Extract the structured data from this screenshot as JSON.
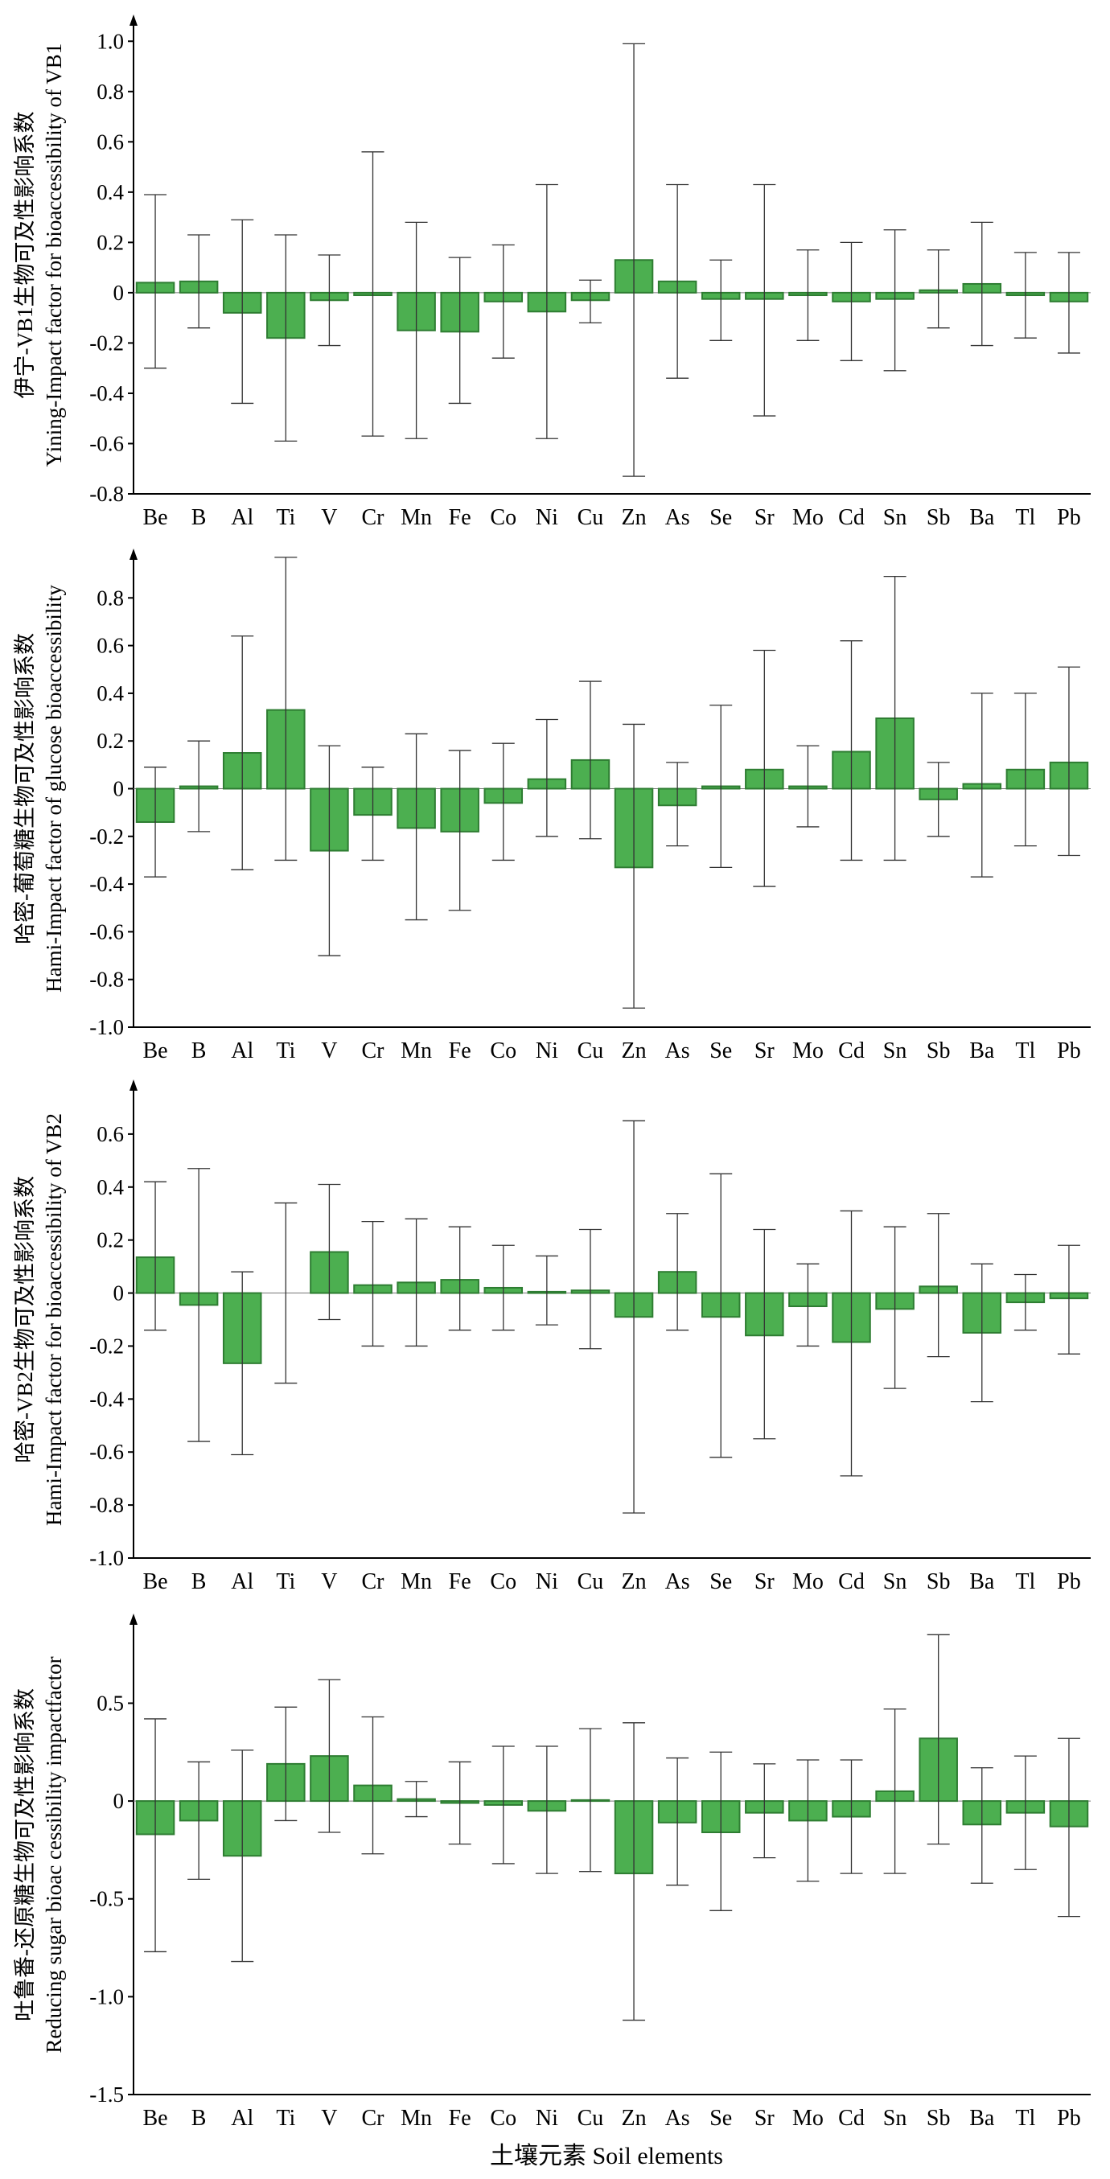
{
  "x_axis_label": "土壤元素 Soil elements",
  "chart_data": [
    {
      "type": "bar",
      "ylabel_line1": "伊宁-VB1生物可及性影响系数",
      "ylabel_line2": "Yining-Impact factor for bioaccessibility of VB1",
      "ylim": [
        -0.8,
        1.1
      ],
      "yticks": [
        1.0,
        0.8,
        0.6,
        0.4,
        0.2,
        0,
        -0.2,
        -0.4,
        -0.6,
        -0.8
      ],
      "ytick_labels": [
        "1.0",
        "0.8",
        "0.6",
        "0.4",
        "0.2",
        "0",
        "-0.2",
        "-0.4",
        "-0.6",
        "-0.8"
      ],
      "categories": [
        "Be",
        "B",
        "Al",
        "Ti",
        "V",
        "Cr",
        "Mn",
        "Fe",
        "Co",
        "Ni",
        "Cu",
        "Zn",
        "As",
        "Se",
        "Sr",
        "Mo",
        "Cd",
        "Sn",
        "Sb",
        "Ba",
        "Tl",
        "Pb"
      ],
      "values": [
        0.04,
        0.045,
        -0.08,
        -0.18,
        -0.03,
        -0.01,
        -0.15,
        -0.155,
        -0.035,
        -0.075,
        -0.03,
        0.13,
        0.045,
        -0.025,
        -0.025,
        -0.01,
        -0.035,
        -0.025,
        0.01,
        0.035,
        -0.01,
        -0.035
      ],
      "err_low": [
        -0.3,
        -0.14,
        -0.44,
        -0.59,
        -0.21,
        -0.57,
        -0.58,
        -0.44,
        -0.26,
        -0.58,
        -0.12,
        -0.73,
        -0.34,
        -0.19,
        -0.49,
        -0.19,
        -0.27,
        -0.31,
        -0.14,
        -0.21,
        -0.18,
        -0.24
      ],
      "err_high": [
        0.39,
        0.23,
        0.29,
        0.23,
        0.15,
        0.56,
        0.28,
        0.14,
        0.19,
        0.43,
        0.05,
        0.99,
        0.43,
        0.13,
        0.43,
        0.17,
        0.2,
        0.25,
        0.17,
        0.28,
        0.16,
        0.16
      ]
    },
    {
      "type": "bar",
      "ylabel_line1": "哈密-葡萄糖生物可及性影响系数",
      "ylabel_line2": "Hami-Impact factor of glucose bioaccessibility",
      "ylim": [
        -1.0,
        1.0
      ],
      "yticks": [
        0.8,
        0.6,
        0.4,
        0.2,
        0,
        -0.2,
        -0.4,
        -0.6,
        -0.8,
        -1.0
      ],
      "ytick_labels": [
        "0.8",
        "0.6",
        "0.4",
        "0.2",
        "0",
        "-0.2",
        "-0.4",
        "-0.6",
        "-0.8",
        "-1.0"
      ],
      "categories": [
        "Be",
        "B",
        "Al",
        "Ti",
        "V",
        "Cr",
        "Mn",
        "Fe",
        "Co",
        "Ni",
        "Cu",
        "Zn",
        "As",
        "Se",
        "Sr",
        "Mo",
        "Cd",
        "Sn",
        "Sb",
        "Ba",
        "Tl",
        "Pb"
      ],
      "values": [
        -0.14,
        0.01,
        0.15,
        0.33,
        -0.26,
        -0.11,
        -0.165,
        -0.18,
        -0.06,
        0.04,
        0.12,
        -0.33,
        -0.07,
        0.01,
        0.08,
        0.01,
        0.155,
        0.295,
        -0.045,
        0.02,
        0.08,
        0.11
      ],
      "err_low": [
        -0.37,
        -0.18,
        -0.34,
        -0.3,
        -0.7,
        -0.3,
        -0.55,
        -0.51,
        -0.3,
        -0.2,
        -0.21,
        -0.92,
        -0.24,
        -0.33,
        -0.41,
        -0.16,
        -0.3,
        -0.3,
        -0.2,
        -0.37,
        -0.24,
        -0.28
      ],
      "err_high": [
        0.09,
        0.2,
        0.64,
        0.97,
        0.18,
        0.09,
        0.23,
        0.16,
        0.19,
        0.29,
        0.45,
        0.27,
        0.11,
        0.35,
        0.58,
        0.18,
        0.62,
        0.89,
        0.11,
        0.4,
        0.4,
        0.51
      ]
    },
    {
      "type": "bar",
      "ylabel_line1": "哈密-VB2生物可及性影响系数",
      "ylabel_line2": "Hami-Impact factor for bioaccessibility of VB2",
      "ylim": [
        -1.0,
        0.8
      ],
      "yticks": [
        0.6,
        0.4,
        0.2,
        0,
        -0.2,
        -0.4,
        -0.6,
        -0.8,
        -1.0
      ],
      "ytick_labels": [
        "0.6",
        "0.4",
        "0.2",
        "0",
        "-0.2",
        "-0.4",
        "-0.6",
        "-0.8",
        "-1.0"
      ],
      "categories": [
        "Be",
        "B",
        "Al",
        "Ti",
        "V",
        "Cr",
        "Mn",
        "Fe",
        "Co",
        "Ni",
        "Cu",
        "Zn",
        "As",
        "Se",
        "Sr",
        "Mo",
        "Cd",
        "Sn",
        "Sb",
        "Ba",
        "Tl",
        "Pb"
      ],
      "values": [
        0.135,
        -0.045,
        -0.265,
        0,
        0.155,
        0.03,
        0.04,
        0.05,
        0.02,
        0.005,
        0.01,
        -0.09,
        0.08,
        -0.09,
        -0.16,
        -0.05,
        -0.185,
        -0.06,
        0.025,
        -0.15,
        -0.035,
        -0.02
      ],
      "err_low": [
        -0.14,
        -0.56,
        -0.61,
        -0.34,
        -0.1,
        -0.2,
        -0.2,
        -0.14,
        -0.14,
        -0.12,
        -0.21,
        -0.83,
        -0.14,
        -0.62,
        -0.55,
        -0.2,
        -0.69,
        -0.36,
        -0.24,
        -0.41,
        -0.14,
        -0.23
      ],
      "err_high": [
        0.42,
        0.47,
        0.08,
        0.34,
        0.41,
        0.27,
        0.28,
        0.25,
        0.18,
        0.14,
        0.24,
        0.65,
        0.3,
        0.45,
        0.24,
        0.11,
        0.31,
        0.25,
        0.3,
        0.11,
        0.07,
        0.18
      ]
    },
    {
      "type": "bar",
      "ylabel_line1": "吐鲁番-还原糖生物可及性影响系数",
      "ylabel_line2": "Reducing sugar bioac cessibility impactfactor",
      "ylim": [
        -1.5,
        0.95
      ],
      "yticks": [
        0.5,
        0,
        -0.5,
        -1.0,
        -1.5
      ],
      "ytick_labels": [
        "0.5",
        "0",
        "-0.5",
        "-1.0",
        "-1.5"
      ],
      "categories": [
        "Be",
        "B",
        "Al",
        "Ti",
        "V",
        "Cr",
        "Mn",
        "Fe",
        "Co",
        "Ni",
        "Cu",
        "Zn",
        "As",
        "Se",
        "Sr",
        "Mo",
        "Cd",
        "Sn",
        "Sb",
        "Ba",
        "Tl",
        "Pb"
      ],
      "values": [
        -0.17,
        -0.1,
        -0.28,
        0.19,
        0.23,
        0.08,
        0.01,
        -0.01,
        -0.02,
        -0.05,
        0.005,
        -0.37,
        -0.11,
        -0.16,
        -0.06,
        -0.1,
        -0.08,
        0.05,
        0.32,
        -0.12,
        -0.06,
        -0.13
      ],
      "err_low": [
        -0.77,
        -0.4,
        -0.82,
        -0.1,
        -0.16,
        -0.27,
        -0.08,
        -0.22,
        -0.32,
        -0.37,
        -0.36,
        -1.12,
        -0.43,
        -0.56,
        -0.29,
        -0.41,
        -0.37,
        -0.37,
        -0.22,
        -0.42,
        -0.35,
        -0.59
      ],
      "err_high": [
        0.42,
        0.2,
        0.26,
        0.48,
        0.62,
        0.43,
        0.1,
        0.2,
        0.28,
        0.28,
        0.37,
        0.4,
        0.22,
        0.25,
        0.19,
        0.21,
        0.21,
        0.47,
        0.85,
        0.17,
        0.23,
        0.32
      ]
    }
  ],
  "colors": {
    "bar_fill": "#4caf50",
    "bar_stroke": "#2e7d32",
    "axis": "#000000",
    "errorbar": "#333333"
  }
}
